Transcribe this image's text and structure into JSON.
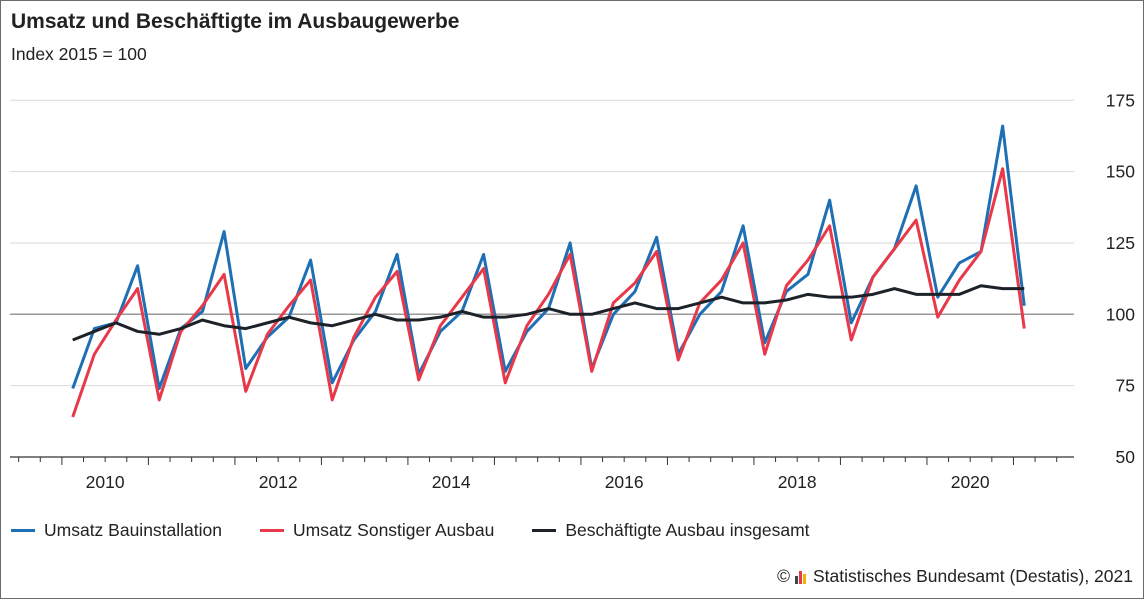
{
  "title": "Umsatz und Beschäftigte im Ausbaugewerbe",
  "subtitle": "Index 2015 = 100",
  "source": {
    "copyright_symbol": "©",
    "logo_icon": "destatis-logo-icon",
    "text": "Statistisches Bundesamt (Destatis), 2021"
  },
  "colors": {
    "bauinstallation": "#1f6fb5",
    "sonstiger_ausbau": "#e8394a",
    "beschaeftigte": "#1c2228",
    "grid": "#d9d9d9",
    "reference_line": "#999999",
    "axis": "#333333"
  },
  "chart_data": {
    "type": "line",
    "x_unit": "quarter",
    "xlim": [
      2009.4,
      2021.7
    ],
    "ylim": [
      50,
      180
    ],
    "y_ticks": [
      50,
      75,
      100,
      125,
      150,
      175
    ],
    "y_axis_position": "right",
    "x_ticks": [
      2010,
      2012,
      2014,
      2016,
      2018,
      2020
    ],
    "reference_value": 100,
    "grid": true,
    "legend_position": "bottom-left",
    "x": [
      "2010-Q1",
      "2010-Q2",
      "2010-Q3",
      "2010-Q4",
      "2011-Q1",
      "2011-Q2",
      "2011-Q3",
      "2011-Q4",
      "2012-Q1",
      "2012-Q2",
      "2012-Q3",
      "2012-Q4",
      "2013-Q1",
      "2013-Q2",
      "2013-Q3",
      "2013-Q4",
      "2014-Q1",
      "2014-Q2",
      "2014-Q3",
      "2014-Q4",
      "2015-Q1",
      "2015-Q2",
      "2015-Q3",
      "2015-Q4",
      "2016-Q1",
      "2016-Q2",
      "2016-Q3",
      "2016-Q4",
      "2017-Q1",
      "2017-Q2",
      "2017-Q3",
      "2017-Q4",
      "2018-Q1",
      "2018-Q2",
      "2018-Q3",
      "2018-Q4",
      "2019-Q1",
      "2019-Q2",
      "2019-Q3",
      "2019-Q4",
      "2020-Q1",
      "2020-Q2",
      "2020-Q3",
      "2020-Q4",
      "2021-Q1"
    ],
    "series": [
      {
        "name": "Umsatz Bauinstallation",
        "color_key": "bauinstallation",
        "values": [
          74,
          95,
          97,
          117,
          74,
          95,
          101,
          129,
          81,
          92,
          99,
          119,
          76,
          91,
          101,
          121,
          79,
          94,
          101,
          121,
          80,
          94,
          102,
          125,
          81,
          100,
          108,
          127,
          86,
          100,
          108,
          131,
          90,
          108,
          114,
          140,
          97,
          113,
          123,
          145,
          106,
          118,
          122,
          166,
          103
        ]
      },
      {
        "name": "Umsatz Sonstiger Ausbau",
        "color_key": "sonstiger_ausbau",
        "values": [
          64,
          86,
          98,
          109,
          70,
          94,
          103,
          114,
          73,
          93,
          103,
          112,
          70,
          92,
          106,
          115,
          77,
          96,
          106,
          116,
          76,
          96,
          107,
          121,
          80,
          104,
          111,
          122,
          84,
          104,
          112,
          125,
          86,
          110,
          119,
          131,
          91,
          113,
          123,
          133,
          99,
          112,
          122,
          151,
          95
        ]
      },
      {
        "name": "Beschäftigte Ausbau insgesamt",
        "color_key": "beschaeftigte",
        "values": [
          91,
          94,
          97,
          94,
          93,
          95,
          98,
          96,
          95,
          97,
          99,
          97,
          96,
          98,
          100,
          98,
          98,
          99,
          101,
          99,
          99,
          100,
          102,
          100,
          100,
          102,
          104,
          102,
          102,
          104,
          106,
          104,
          104,
          105,
          107,
          106,
          106,
          107,
          109,
          107,
          107,
          107,
          110,
          109,
          109
        ]
      }
    ]
  }
}
